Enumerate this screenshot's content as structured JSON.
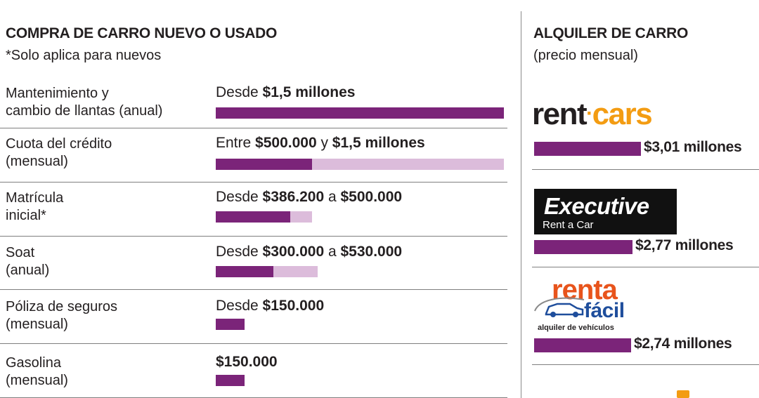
{
  "left": {
    "title": "COMPRA DE CARRO NUEVO O USADO",
    "subtitle": "*Solo aplica para nuevos",
    "rows": [
      {
        "label1": "Mantenimiento y",
        "label2": "cambio de llantas (anual)",
        "t1": "Desde ",
        "b1": "$1,5 millones",
        "t2": "",
        "b2": ""
      },
      {
        "label1": "Cuota del crédito",
        "label2": "(mensual)",
        "t1": "Entre ",
        "b1": "$500.000",
        "t2": " y ",
        "b2": "$1,5 millones"
      },
      {
        "label1": "Matrícula",
        "label2": "inicial*",
        "t1": "Desde ",
        "b1": "$386.200",
        "t2": " a ",
        "b2": "$500.000"
      },
      {
        "label1": "Soat",
        "label2": "(anual)",
        "t1": "Desde ",
        "b1": "$300.000",
        "t2": " a ",
        "b2": "$530.000"
      },
      {
        "label1": "Póliza de seguros",
        "label2": "(mensual)",
        "t1": "Desde ",
        "b1": "$150.000",
        "t2": "",
        "b2": ""
      },
      {
        "label1": "Gasolina",
        "label2": "(mensual)",
        "t1": "",
        "b1": "$150.000",
        "t2": "",
        "b2": ""
      }
    ]
  },
  "right": {
    "title": "ALQUILER DE CARRO",
    "subtitle": "(precio mensual)",
    "items": [
      {
        "value_label": "$3,01 millones"
      },
      {
        "value_label": "$2,77 millones"
      },
      {
        "value_label": "$2,74 millones"
      }
    ]
  },
  "logos": {
    "rentcars_a": "rent",
    "rentcars_b": "cars",
    "executive_a": "Executive",
    "executive_b": "Rent a Car",
    "rentafacil_a": "renta",
    "rentafacil_b": "fácil",
    "rentafacil_c": "alquiler de vehículos"
  },
  "colors": {
    "bar_min": "#7b2479",
    "bar_range": "#dcbcdb",
    "rentcars_orange": "#f39c12",
    "rentafacil_orange": "#e8541c",
    "rentafacil_blue": "#1f4e9c"
  },
  "chart_data": [
    {
      "type": "bar",
      "title": "COMPRA DE CARRO NUEVO O USADO",
      "categories": [
        "Mantenimiento y cambio de llantas (anual)",
        "Cuota del crédito (mensual)",
        "Matrícula inicial*",
        "Soat (anual)",
        "Póliza de seguros (mensual)",
        "Gasolina (mensual)"
      ],
      "min_values": [
        1500000,
        500000,
        386200,
        300000,
        150000,
        150000
      ],
      "max_values": [
        1500000,
        1500000,
        500000,
        530000,
        150000,
        150000
      ],
      "xlim": [
        0,
        1500000
      ]
    },
    {
      "type": "bar",
      "title": "ALQUILER DE CARRO",
      "categories": [
        "rentcars",
        "Executive Rent a Car",
        "renta fácil"
      ],
      "values": [
        3.01,
        2.77,
        2.74
      ],
      "xlim": [
        0,
        3.01
      ]
    }
  ]
}
